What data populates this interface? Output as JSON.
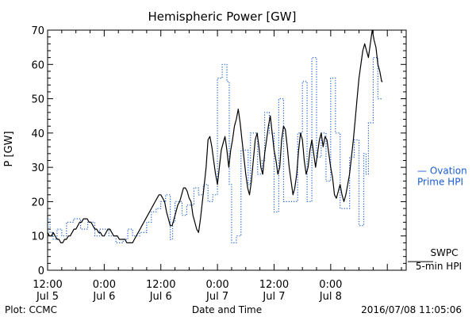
{
  "chart_data": {
    "type": "line",
    "title": "Hemispheric Power [GW]",
    "xlabel": "Date and Time",
    "ylabel": "P [GW]",
    "ylim": [
      0,
      70
    ],
    "xlim": [
      0,
      76
    ],
    "grid": false,
    "legend_position": "right",
    "x_unit": "hours since Jul 5 12:00",
    "y_ticks": [
      "0",
      "10",
      "20",
      "30",
      "40",
      "50",
      "60",
      "70"
    ],
    "x_ticks": [
      {
        "time": "12:00",
        "date": "Jul 5",
        "x": 0
      },
      {
        "time": "0:00",
        "date": "Jul 6",
        "x": 12
      },
      {
        "time": "12:00",
        "date": "Jul 6",
        "x": 24
      },
      {
        "time": "0:00",
        "date": "Jul 7",
        "x": 36
      },
      {
        "time": "12:00",
        "date": "Jul 7",
        "x": 48
      },
      {
        "time": "0:00",
        "date": "Jul 8",
        "x": 60
      }
    ],
    "series": [
      {
        "name": "Ovation Prime HPI",
        "name_line1": "— Ovation",
        "name_line2": "Prime HPI",
        "color": "#1a5fd0",
        "style": "dotted-step",
        "label_y": 29,
        "points": [
          [
            0,
            15
          ],
          [
            0.5,
            15
          ],
          [
            0.5,
            11
          ],
          [
            1.2,
            11
          ],
          [
            1.2,
            9
          ],
          [
            2,
            9
          ],
          [
            2,
            12
          ],
          [
            3,
            12
          ],
          [
            3,
            10
          ],
          [
            4,
            10
          ],
          [
            4,
            14
          ],
          [
            5.5,
            14
          ],
          [
            5.5,
            15
          ],
          [
            7,
            15
          ],
          [
            7,
            12
          ],
          [
            8.5,
            12
          ],
          [
            8.5,
            14
          ],
          [
            10,
            14
          ],
          [
            10,
            10
          ],
          [
            11,
            10
          ],
          [
            11,
            12
          ],
          [
            13,
            12
          ],
          [
            13,
            10
          ],
          [
            14.5,
            10
          ],
          [
            14.5,
            8
          ],
          [
            16,
            8
          ],
          [
            16,
            9
          ],
          [
            17,
            9
          ],
          [
            17,
            12
          ],
          [
            18,
            12
          ],
          [
            18,
            10
          ],
          [
            19.5,
            10
          ],
          [
            19.5,
            11
          ],
          [
            21,
            11
          ],
          [
            21,
            14
          ],
          [
            22,
            14
          ],
          [
            22,
            17
          ],
          [
            23,
            17
          ],
          [
            23,
            18
          ],
          [
            24,
            18
          ],
          [
            24,
            20
          ],
          [
            25,
            20
          ],
          [
            25,
            22
          ],
          [
            26,
            22
          ],
          [
            26,
            9
          ],
          [
            26.5,
            9
          ],
          [
            26.5,
            14
          ],
          [
            27,
            14
          ],
          [
            27,
            20
          ],
          [
            28.5,
            20
          ],
          [
            28.5,
            16
          ],
          [
            29.5,
            16
          ],
          [
            29.5,
            19
          ],
          [
            31,
            19
          ],
          [
            31,
            24
          ],
          [
            32,
            24
          ],
          [
            32,
            22
          ],
          [
            33,
            22
          ],
          [
            33,
            25
          ],
          [
            34,
            25
          ],
          [
            34,
            20
          ],
          [
            35,
            20
          ],
          [
            35,
            22
          ],
          [
            36,
            22
          ],
          [
            36,
            56
          ],
          [
            37,
            56
          ],
          [
            37,
            60
          ],
          [
            38,
            60
          ],
          [
            38,
            55
          ],
          [
            38.5,
            55
          ],
          [
            38.5,
            25
          ],
          [
            39,
            25
          ],
          [
            39,
            8
          ],
          [
            40,
            8
          ],
          [
            40,
            10
          ],
          [
            41,
            10
          ],
          [
            41,
            35
          ],
          [
            42.5,
            35
          ],
          [
            42.5,
            25
          ],
          [
            43,
            25
          ],
          [
            43,
            40
          ],
          [
            44.5,
            40
          ],
          [
            44.5,
            28
          ],
          [
            45.5,
            28
          ],
          [
            45.5,
            32
          ],
          [
            46,
            32
          ],
          [
            46,
            46
          ],
          [
            47,
            46
          ],
          [
            47,
            40
          ],
          [
            48,
            40
          ],
          [
            48,
            17
          ],
          [
            49,
            17
          ],
          [
            49,
            50
          ],
          [
            50,
            50
          ],
          [
            50,
            20
          ],
          [
            53,
            20
          ],
          [
            53,
            40
          ],
          [
            54,
            40
          ],
          [
            54,
            55
          ],
          [
            55,
            55
          ],
          [
            55,
            20
          ],
          [
            56,
            20
          ],
          [
            56,
            62
          ],
          [
            57,
            62
          ],
          [
            57,
            33
          ],
          [
            58,
            33
          ],
          [
            58,
            40
          ],
          [
            59,
            40
          ],
          [
            59,
            26
          ],
          [
            60,
            26
          ],
          [
            60,
            56
          ],
          [
            61,
            56
          ],
          [
            61,
            40
          ],
          [
            62,
            40
          ],
          [
            62,
            18
          ],
          [
            64,
            18
          ],
          [
            64,
            33
          ],
          [
            65,
            33
          ],
          [
            65,
            38
          ],
          [
            66,
            38
          ],
          [
            66,
            13
          ],
          [
            67,
            13
          ],
          [
            67,
            34
          ],
          [
            67.5,
            34
          ],
          [
            67.5,
            28
          ],
          [
            68,
            28
          ],
          [
            68,
            43
          ],
          [
            69,
            43
          ],
          [
            69,
            62
          ],
          [
            70,
            62
          ],
          [
            70,
            50
          ],
          [
            71,
            50
          ]
        ]
      },
      {
        "name": "SWPC 5-min HPI",
        "name_line1": "SWPC",
        "name_line2": "5-min HPI",
        "color": "#000000",
        "style": "solid",
        "label_y": 3.5,
        "points": [
          [
            0,
            11
          ],
          [
            0.4,
            10
          ],
          [
            0.8,
            10
          ],
          [
            1.2,
            11
          ],
          [
            1.6,
            10
          ],
          [
            2,
            9
          ],
          [
            2.4,
            9
          ],
          [
            2.8,
            8
          ],
          [
            3.2,
            8
          ],
          [
            3.6,
            9
          ],
          [
            4,
            9
          ],
          [
            4.4,
            10
          ],
          [
            4.8,
            10
          ],
          [
            5.2,
            11
          ],
          [
            5.6,
            12
          ],
          [
            6,
            12
          ],
          [
            6.4,
            13
          ],
          [
            6.8,
            14
          ],
          [
            7.2,
            14
          ],
          [
            7.6,
            15
          ],
          [
            8,
            15
          ],
          [
            8.4,
            15
          ],
          [
            8.8,
            14
          ],
          [
            9.2,
            14
          ],
          [
            9.6,
            13
          ],
          [
            10,
            12
          ],
          [
            10.4,
            12
          ],
          [
            10.8,
            11
          ],
          [
            11.2,
            11
          ],
          [
            11.6,
            10
          ],
          [
            12,
            10
          ],
          [
            12.4,
            11
          ],
          [
            12.8,
            12
          ],
          [
            13.2,
            12
          ],
          [
            13.6,
            11
          ],
          [
            14,
            10
          ],
          [
            14.4,
            10
          ],
          [
            14.8,
            10
          ],
          [
            15.2,
            9
          ],
          [
            15.6,
            9
          ],
          [
            16,
            9
          ],
          [
            16.4,
            9
          ],
          [
            16.8,
            8
          ],
          [
            17.2,
            8
          ],
          [
            17.6,
            8
          ],
          [
            18,
            8
          ],
          [
            18.4,
            9
          ],
          [
            18.8,
            10
          ],
          [
            19.2,
            11
          ],
          [
            19.6,
            12
          ],
          [
            20,
            13
          ],
          [
            20.4,
            14
          ],
          [
            20.8,
            15
          ],
          [
            21.2,
            16
          ],
          [
            21.6,
            17
          ],
          [
            22,
            18
          ],
          [
            22.4,
            19
          ],
          [
            22.8,
            20
          ],
          [
            23.2,
            21
          ],
          [
            23.6,
            22
          ],
          [
            24,
            22
          ],
          [
            24.4,
            21
          ],
          [
            24.8,
            20
          ],
          [
            25.2,
            17
          ],
          [
            25.6,
            15
          ],
          [
            26,
            13
          ],
          [
            26.4,
            13
          ],
          [
            26.8,
            15
          ],
          [
            27.2,
            17
          ],
          [
            27.6,
            19
          ],
          [
            28,
            20
          ],
          [
            28.4,
            22
          ],
          [
            28.8,
            24
          ],
          [
            29.2,
            24
          ],
          [
            29.6,
            23
          ],
          [
            30,
            21
          ],
          [
            30.4,
            20
          ],
          [
            30.8,
            16
          ],
          [
            31.2,
            14
          ],
          [
            31.6,
            12
          ],
          [
            32,
            11
          ],
          [
            32.4,
            15
          ],
          [
            32.8,
            20
          ],
          [
            33.2,
            25
          ],
          [
            33.6,
            30
          ],
          [
            34,
            38
          ],
          [
            34.4,
            39
          ],
          [
            34.8,
            36
          ],
          [
            35.2,
            32
          ],
          [
            35.6,
            28
          ],
          [
            36,
            25
          ],
          [
            36.4,
            30
          ],
          [
            36.8,
            35
          ],
          [
            37.2,
            37
          ],
          [
            37.6,
            39
          ],
          [
            38,
            35
          ],
          [
            38.4,
            30
          ],
          [
            38.8,
            35
          ],
          [
            39.2,
            38
          ],
          [
            39.6,
            42
          ],
          [
            40,
            44
          ],
          [
            40.4,
            47
          ],
          [
            40.8,
            43
          ],
          [
            41.2,
            38
          ],
          [
            41.6,
            33
          ],
          [
            42,
            28
          ],
          [
            42.4,
            24
          ],
          [
            42.8,
            22
          ],
          [
            43.2,
            26
          ],
          [
            43.6,
            32
          ],
          [
            44,
            38
          ],
          [
            44.4,
            40
          ],
          [
            44.8,
            36
          ],
          [
            45.2,
            30
          ],
          [
            45.6,
            28
          ],
          [
            46,
            34
          ],
          [
            46.4,
            38
          ],
          [
            46.8,
            42
          ],
          [
            47.2,
            45
          ],
          [
            47.6,
            40
          ],
          [
            48,
            35
          ],
          [
            48.4,
            32
          ],
          [
            48.8,
            28
          ],
          [
            49.2,
            30
          ],
          [
            49.6,
            38
          ],
          [
            50,
            42
          ],
          [
            50.4,
            41
          ],
          [
            50.8,
            36
          ],
          [
            51.2,
            30
          ],
          [
            51.6,
            26
          ],
          [
            52,
            22
          ],
          [
            52.4,
            24
          ],
          [
            52.8,
            28
          ],
          [
            53.2,
            35
          ],
          [
            53.6,
            40
          ],
          [
            54,
            38
          ],
          [
            54.4,
            32
          ],
          [
            54.8,
            28
          ],
          [
            55.2,
            30
          ],
          [
            55.6,
            35
          ],
          [
            56,
            38
          ],
          [
            56.4,
            34
          ],
          [
            56.8,
            30
          ],
          [
            57.2,
            34
          ],
          [
            57.6,
            38
          ],
          [
            58,
            40
          ],
          [
            58.4,
            36
          ],
          [
            58.8,
            39
          ],
          [
            59.2,
            38
          ],
          [
            59.6,
            34
          ],
          [
            60,
            30
          ],
          [
            60.4,
            27
          ],
          [
            60.8,
            22
          ],
          [
            61.2,
            21
          ],
          [
            61.6,
            23
          ],
          [
            62,
            25
          ],
          [
            62.4,
            22
          ],
          [
            62.8,
            20
          ],
          [
            63.2,
            22
          ],
          [
            63.6,
            25
          ],
          [
            64,
            28
          ],
          [
            64.4,
            33
          ],
          [
            64.8,
            38
          ],
          [
            65.2,
            44
          ],
          [
            65.6,
            50
          ],
          [
            66,
            56
          ],
          [
            66.4,
            60
          ],
          [
            66.8,
            64
          ],
          [
            67.2,
            66
          ],
          [
            67.6,
            64
          ],
          [
            68,
            62
          ],
          [
            68.4,
            66
          ],
          [
            68.8,
            70
          ],
          [
            69.2,
            67
          ],
          [
            69.6,
            65
          ],
          [
            70,
            60
          ],
          [
            70.4,
            58
          ],
          [
            70.8,
            55
          ],
          [
            71,
            55
          ]
        ]
      }
    ],
    "footer": {
      "left": "Plot: CCMC",
      "right": "2016/07/08 11:05:06"
    }
  }
}
